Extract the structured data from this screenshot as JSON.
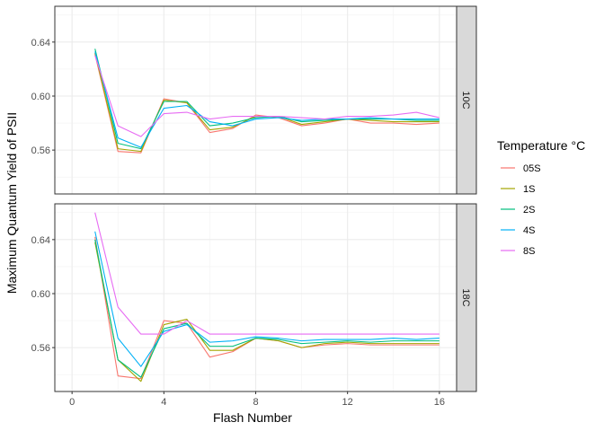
{
  "chart_data": {
    "type": "line",
    "xlabel": "Flash Number",
    "ylabel": "Maximum Quantum Yield of PSII",
    "xlim": [
      -0.75,
      16.75
    ],
    "x_ticks": [
      0,
      4,
      8,
      12,
      16
    ],
    "ylim": [
      0.5275,
      0.6665
    ],
    "y_ticks": [
      0.56,
      0.6,
      0.64
    ],
    "y_tick_labels": [
      "0.56",
      "0.60",
      "0.64"
    ],
    "grid": true,
    "legend": {
      "title": "Temperature °C",
      "position": "right",
      "entries": [
        "05S",
        "1S",
        "2S",
        "4S",
        "8S"
      ]
    },
    "colors": {
      "05S": "#F8766D",
      "1S": "#A3A500",
      "2S": "#00BF7D",
      "4S": "#00B0F6",
      "8S": "#E76BF3"
    },
    "x": [
      1,
      2,
      3,
      4,
      5,
      6,
      7,
      8,
      9,
      10,
      11,
      12,
      13,
      14,
      15,
      16
    ],
    "panels": [
      {
        "label": "10C",
        "series": [
          {
            "name": "05S",
            "values": [
              0.631,
              0.559,
              0.558,
              0.598,
              0.595,
              0.573,
              0.576,
              0.586,
              0.584,
              0.578,
              0.58,
              0.583,
              0.58,
              0.58,
              0.579,
              0.58
            ]
          },
          {
            "name": "1S",
            "values": [
              0.632,
              0.561,
              0.559,
              0.597,
              0.595,
              0.575,
              0.577,
              0.585,
              0.585,
              0.579,
              0.581,
              0.583,
              0.582,
              0.581,
              0.581,
              0.581
            ]
          },
          {
            "name": "2S",
            "values": [
              0.635,
              0.565,
              0.561,
              0.596,
              0.596,
              0.578,
              0.58,
              0.584,
              0.585,
              0.581,
              0.582,
              0.583,
              0.583,
              0.583,
              0.582,
              0.582
            ]
          },
          {
            "name": "4S",
            "values": [
              0.633,
              0.569,
              0.562,
              0.591,
              0.593,
              0.581,
              0.578,
              0.583,
              0.584,
              0.582,
              0.583,
              0.583,
              0.584,
              0.583,
              0.583,
              0.583
            ]
          },
          {
            "name": "8S",
            "values": [
              0.63,
              0.578,
              0.57,
              0.587,
              0.588,
              0.583,
              0.585,
              0.585,
              0.585,
              0.584,
              0.583,
              0.585,
              0.585,
              0.586,
              0.588,
              0.584
            ]
          }
        ]
      },
      {
        "label": "18C",
        "series": [
          {
            "name": "05S",
            "values": [
              0.642,
              0.539,
              0.537,
              0.58,
              0.578,
              0.553,
              0.557,
              0.567,
              0.565,
              0.56,
              0.562,
              0.563,
              0.562,
              0.562,
              0.562,
              0.562
            ]
          },
          {
            "name": "1S",
            "values": [
              0.638,
              0.551,
              0.535,
              0.577,
              0.581,
              0.558,
              0.558,
              0.567,
              0.565,
              0.56,
              0.563,
              0.564,
              0.563,
              0.563,
              0.563,
              0.563
            ]
          },
          {
            "name": "2S",
            "values": [
              0.64,
              0.551,
              0.538,
              0.574,
              0.578,
              0.561,
              0.561,
              0.567,
              0.566,
              0.563,
              0.564,
              0.565,
              0.564,
              0.565,
              0.565,
              0.565
            ]
          },
          {
            "name": "4S",
            "values": [
              0.646,
              0.567,
              0.546,
              0.572,
              0.577,
              0.564,
              0.565,
              0.568,
              0.567,
              0.565,
              0.566,
              0.566,
              0.566,
              0.567,
              0.566,
              0.567
            ]
          },
          {
            "name": "8S",
            "values": [
              0.66,
              0.59,
              0.57,
              0.57,
              0.58,
              0.57,
              0.57,
              0.57,
              0.57,
              0.57,
              0.57,
              0.57,
              0.57,
              0.57,
              0.57,
              0.57
            ]
          }
        ]
      }
    ]
  }
}
